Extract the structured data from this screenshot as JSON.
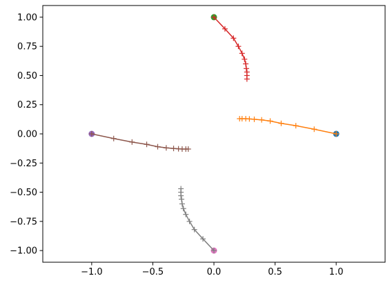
{
  "chart_data": {
    "type": "line",
    "title": "",
    "xlabel": "",
    "ylabel": "",
    "xlim": [
      -1.4,
      1.4
    ],
    "ylim": [
      -1.1,
      1.1
    ],
    "grid": false,
    "x_ticks": [
      {
        "value": -1.0,
        "label": "−1.0"
      },
      {
        "value": -0.5,
        "label": "−0.5"
      },
      {
        "value": 0.0,
        "label": "0.0"
      },
      {
        "value": 0.5,
        "label": "0.5"
      },
      {
        "value": 1.0,
        "label": "1.0"
      }
    ],
    "y_ticks": [
      {
        "value": 1.0,
        "label": "1.00"
      },
      {
        "value": 0.75,
        "label": "0.75"
      },
      {
        "value": 0.5,
        "label": "0.50"
      },
      {
        "value": 0.25,
        "label": "0.25"
      },
      {
        "value": 0.0,
        "label": "0.00"
      },
      {
        "value": -0.25,
        "label": "−0.25"
      },
      {
        "value": -0.5,
        "label": "−0.50"
      },
      {
        "value": -0.75,
        "label": "−0.75"
      },
      {
        "value": -1.0,
        "label": "−1.00"
      }
    ],
    "series": [
      {
        "start": [
          1.0,
          0.0
        ],
        "start_color": "#1f77b4",
        "line_color": "#ff7f0e",
        "x": [
          1.0,
          0.82,
          0.67,
          0.55,
          0.46,
          0.39,
          0.33,
          0.29,
          0.26,
          0.23,
          0.21
        ],
        "y": [
          0.0,
          0.04,
          0.07,
          0.09,
          0.11,
          0.12,
          0.125,
          0.128,
          0.13,
          0.13,
          0.13
        ]
      },
      {
        "start": [
          0.0,
          1.0
        ],
        "start_color": "#2ca02c",
        "line_color": "#d62728",
        "x": [
          0.0,
          0.09,
          0.16,
          0.2,
          0.23,
          0.25,
          0.26,
          0.265,
          0.27,
          0.27,
          0.27
        ],
        "y": [
          1.0,
          0.9,
          0.82,
          0.75,
          0.69,
          0.64,
          0.6,
          0.56,
          0.53,
          0.5,
          0.47
        ]
      },
      {
        "start": [
          -1.0,
          0.0
        ],
        "start_color": "#9467bd",
        "line_color": "#8c564b",
        "x": [
          -1.0,
          -0.82,
          -0.67,
          -0.55,
          -0.46,
          -0.39,
          -0.33,
          -0.29,
          -0.26,
          -0.23,
          -0.21
        ],
        "y": [
          0.0,
          -0.04,
          -0.07,
          -0.09,
          -0.11,
          -0.12,
          -0.125,
          -0.128,
          -0.13,
          -0.13,
          -0.13
        ]
      },
      {
        "start": [
          0.0,
          -1.0
        ],
        "start_color": "#e377c2",
        "line_color": "#7f7f7f",
        "x": [
          0.0,
          -0.09,
          -0.16,
          -0.2,
          -0.23,
          -0.25,
          -0.26,
          -0.265,
          -0.27,
          -0.27,
          -0.27
        ],
        "y": [
          -1.0,
          -0.9,
          -0.82,
          -0.75,
          -0.69,
          -0.64,
          -0.6,
          -0.56,
          -0.53,
          -0.5,
          -0.47
        ]
      }
    ]
  }
}
